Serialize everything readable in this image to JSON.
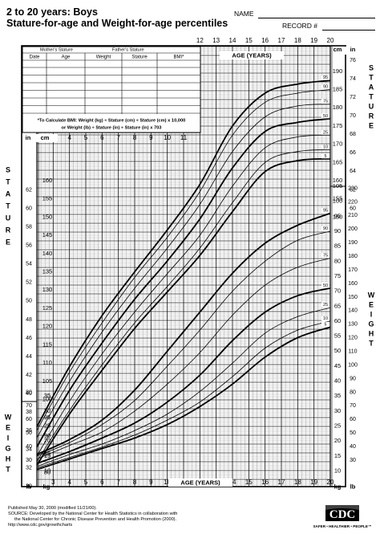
{
  "header": {
    "title_line1": "2 to 20 years: Boys",
    "title_line2": "Stature-for-age and Weight-for-age percentiles",
    "name_label": "NAME",
    "record_label": "RECORD #"
  },
  "record_table": {
    "mothers_stature": "Mother's Stature",
    "fathers_stature": "Father's Stature",
    "columns": [
      "Date",
      "Age",
      "Weight",
      "Stature",
      "BMI*"
    ],
    "bmi_note_line1": "*To Calculate BMI: Weight (kg) ÷ Stature (cm) ÷ Stature (cm) x 10,000",
    "bmi_note_line2": "or Weight (lb) ÷ Stature (in) ÷ Stature (in) x 703"
  },
  "footer": {
    "line1": "Published May 30, 2000 (modified 11/21/00).",
    "line2": "SOURCE: Developed by the National Center for Health Statistics in collaboration with",
    "line3": "the National Center for Chronic Disease Prevention and Health Promotion (2000).",
    "line4": "http://www.cdc.gov/growthcharts"
  },
  "logo": {
    "text": "CDC",
    "tagline": "SAFER • HEALTHIER • PEOPLE™"
  },
  "chart_data": {
    "type": "line",
    "x_axis": {
      "label": "AGE (YEARS)",
      "range": [
        2,
        20
      ],
      "tick_labels": [
        "2",
        "3",
        "4",
        "5",
        "6",
        "7",
        "8",
        "9",
        "10",
        "11",
        "12",
        "13",
        "14",
        "15",
        "16",
        "17",
        "18",
        "19",
        "20"
      ]
    },
    "stature_axis": {
      "title": "STATURE",
      "units_left": [
        "in",
        "cm"
      ],
      "units_right": [
        "cm",
        "in"
      ],
      "cm_range": [
        75,
        197
      ],
      "cm_ticks_left": [
        80,
        85,
        90,
        95,
        100,
        105,
        110,
        115,
        120,
        125,
        130,
        135,
        140,
        145,
        150,
        155,
        160
      ],
      "cm_ticks_right": [
        150,
        155,
        160,
        165,
        170,
        175,
        180,
        185,
        190
      ],
      "in_ticks_left": [
        30,
        32,
        34,
        36,
        38,
        40,
        42,
        44,
        46,
        48,
        50,
        52,
        54,
        56,
        58,
        60,
        62
      ],
      "in_ticks_right": [
        60,
        62,
        64,
        66,
        68,
        70,
        72,
        74,
        76
      ]
    },
    "weight_axis": {
      "title": "WEIGHT",
      "units_left": [
        "kg",
        "lb"
      ],
      "units_right": [
        "kg",
        "lb"
      ],
      "kg_range": [
        8,
        105
      ],
      "kg_ticks_left": [
        10,
        15,
        20,
        25,
        30,
        35
      ],
      "kg_ticks_right": [
        10,
        15,
        20,
        25,
        30,
        35,
        40,
        45,
        50,
        55,
        60,
        65,
        70,
        75,
        80,
        85,
        90,
        95,
        100,
        105
      ],
      "lb_ticks_left": [
        30,
        40,
        50,
        60,
        70,
        80
      ],
      "lb_ticks_right": [
        30,
        40,
        50,
        60,
        70,
        80,
        90,
        100,
        110,
        120,
        130,
        140,
        150,
        160,
        170,
        180,
        190,
        200,
        210,
        220,
        230
      ]
    },
    "percentiles": [
      "95",
      "90",
      "75",
      "50",
      "25",
      "10",
      "5"
    ],
    "ages": [
      2,
      4,
      6,
      8,
      10,
      12,
      14,
      16,
      18,
      20
    ],
    "stature_series": [
      {
        "name": "95",
        "values": [
          92.5,
          109,
          123,
          135,
          146.5,
          159,
          175,
          184,
          186.5,
          187.5
        ]
      },
      {
        "name": "90",
        "values": [
          91.5,
          107.5,
          121,
          133.5,
          144.5,
          157,
          172.5,
          181.5,
          184,
          185
        ]
      },
      {
        "name": "75",
        "values": [
          89.5,
          105,
          118.5,
          130.5,
          141.5,
          153.5,
          168,
          177.5,
          180.5,
          181
        ]
      },
      {
        "name": "50",
        "values": [
          87,
          102.5,
          115.5,
          127.5,
          138,
          149.5,
          163.5,
          173.5,
          176,
          177
        ]
      },
      {
        "name": "25",
        "values": [
          84.5,
          99.5,
          112.5,
          124,
          134.5,
          145,
          158.5,
          169,
          172,
          172.5
        ]
      },
      {
        "name": "10",
        "values": [
          83,
          97,
          109.5,
          121,
          131,
          141.5,
          154,
          165,
          168,
          168.5
        ]
      },
      {
        "name": "5",
        "values": [
          82,
          96,
          108,
          119.5,
          129.5,
          139.5,
          151.5,
          162.5,
          165.5,
          166
        ]
      }
    ],
    "weight_series": [
      {
        "name": "95",
        "values": [
          15.5,
          20.5,
          27,
          37,
          50,
          63,
          76,
          86,
          92,
          96
        ]
      },
      {
        "name": "90",
        "values": [
          15,
          19.5,
          25.5,
          33.5,
          45,
          57,
          70,
          80,
          87,
          90
        ]
      },
      {
        "name": "75",
        "values": [
          14,
          18.5,
          23,
          30,
          39,
          49.5,
          62,
          72,
          78,
          81
        ]
      },
      {
        "name": "50",
        "values": [
          12.5,
          16.5,
          21,
          26,
          33,
          42,
          53.5,
          63,
          68.5,
          71
        ]
      },
      {
        "name": "25",
        "values": [
          11.5,
          15.5,
          19,
          23.5,
          29,
          36.5,
          46,
          56,
          61.5,
          64.5
        ]
      },
      {
        "name": "10",
        "values": [
          11,
          14.5,
          18,
          22,
          27,
          33,
          41.5,
          51,
          57,
          60
        ]
      },
      {
        "name": "5",
        "values": [
          10.5,
          14,
          17.5,
          21,
          25.5,
          31.5,
          39,
          48,
          54.5,
          58
        ]
      }
    ]
  }
}
